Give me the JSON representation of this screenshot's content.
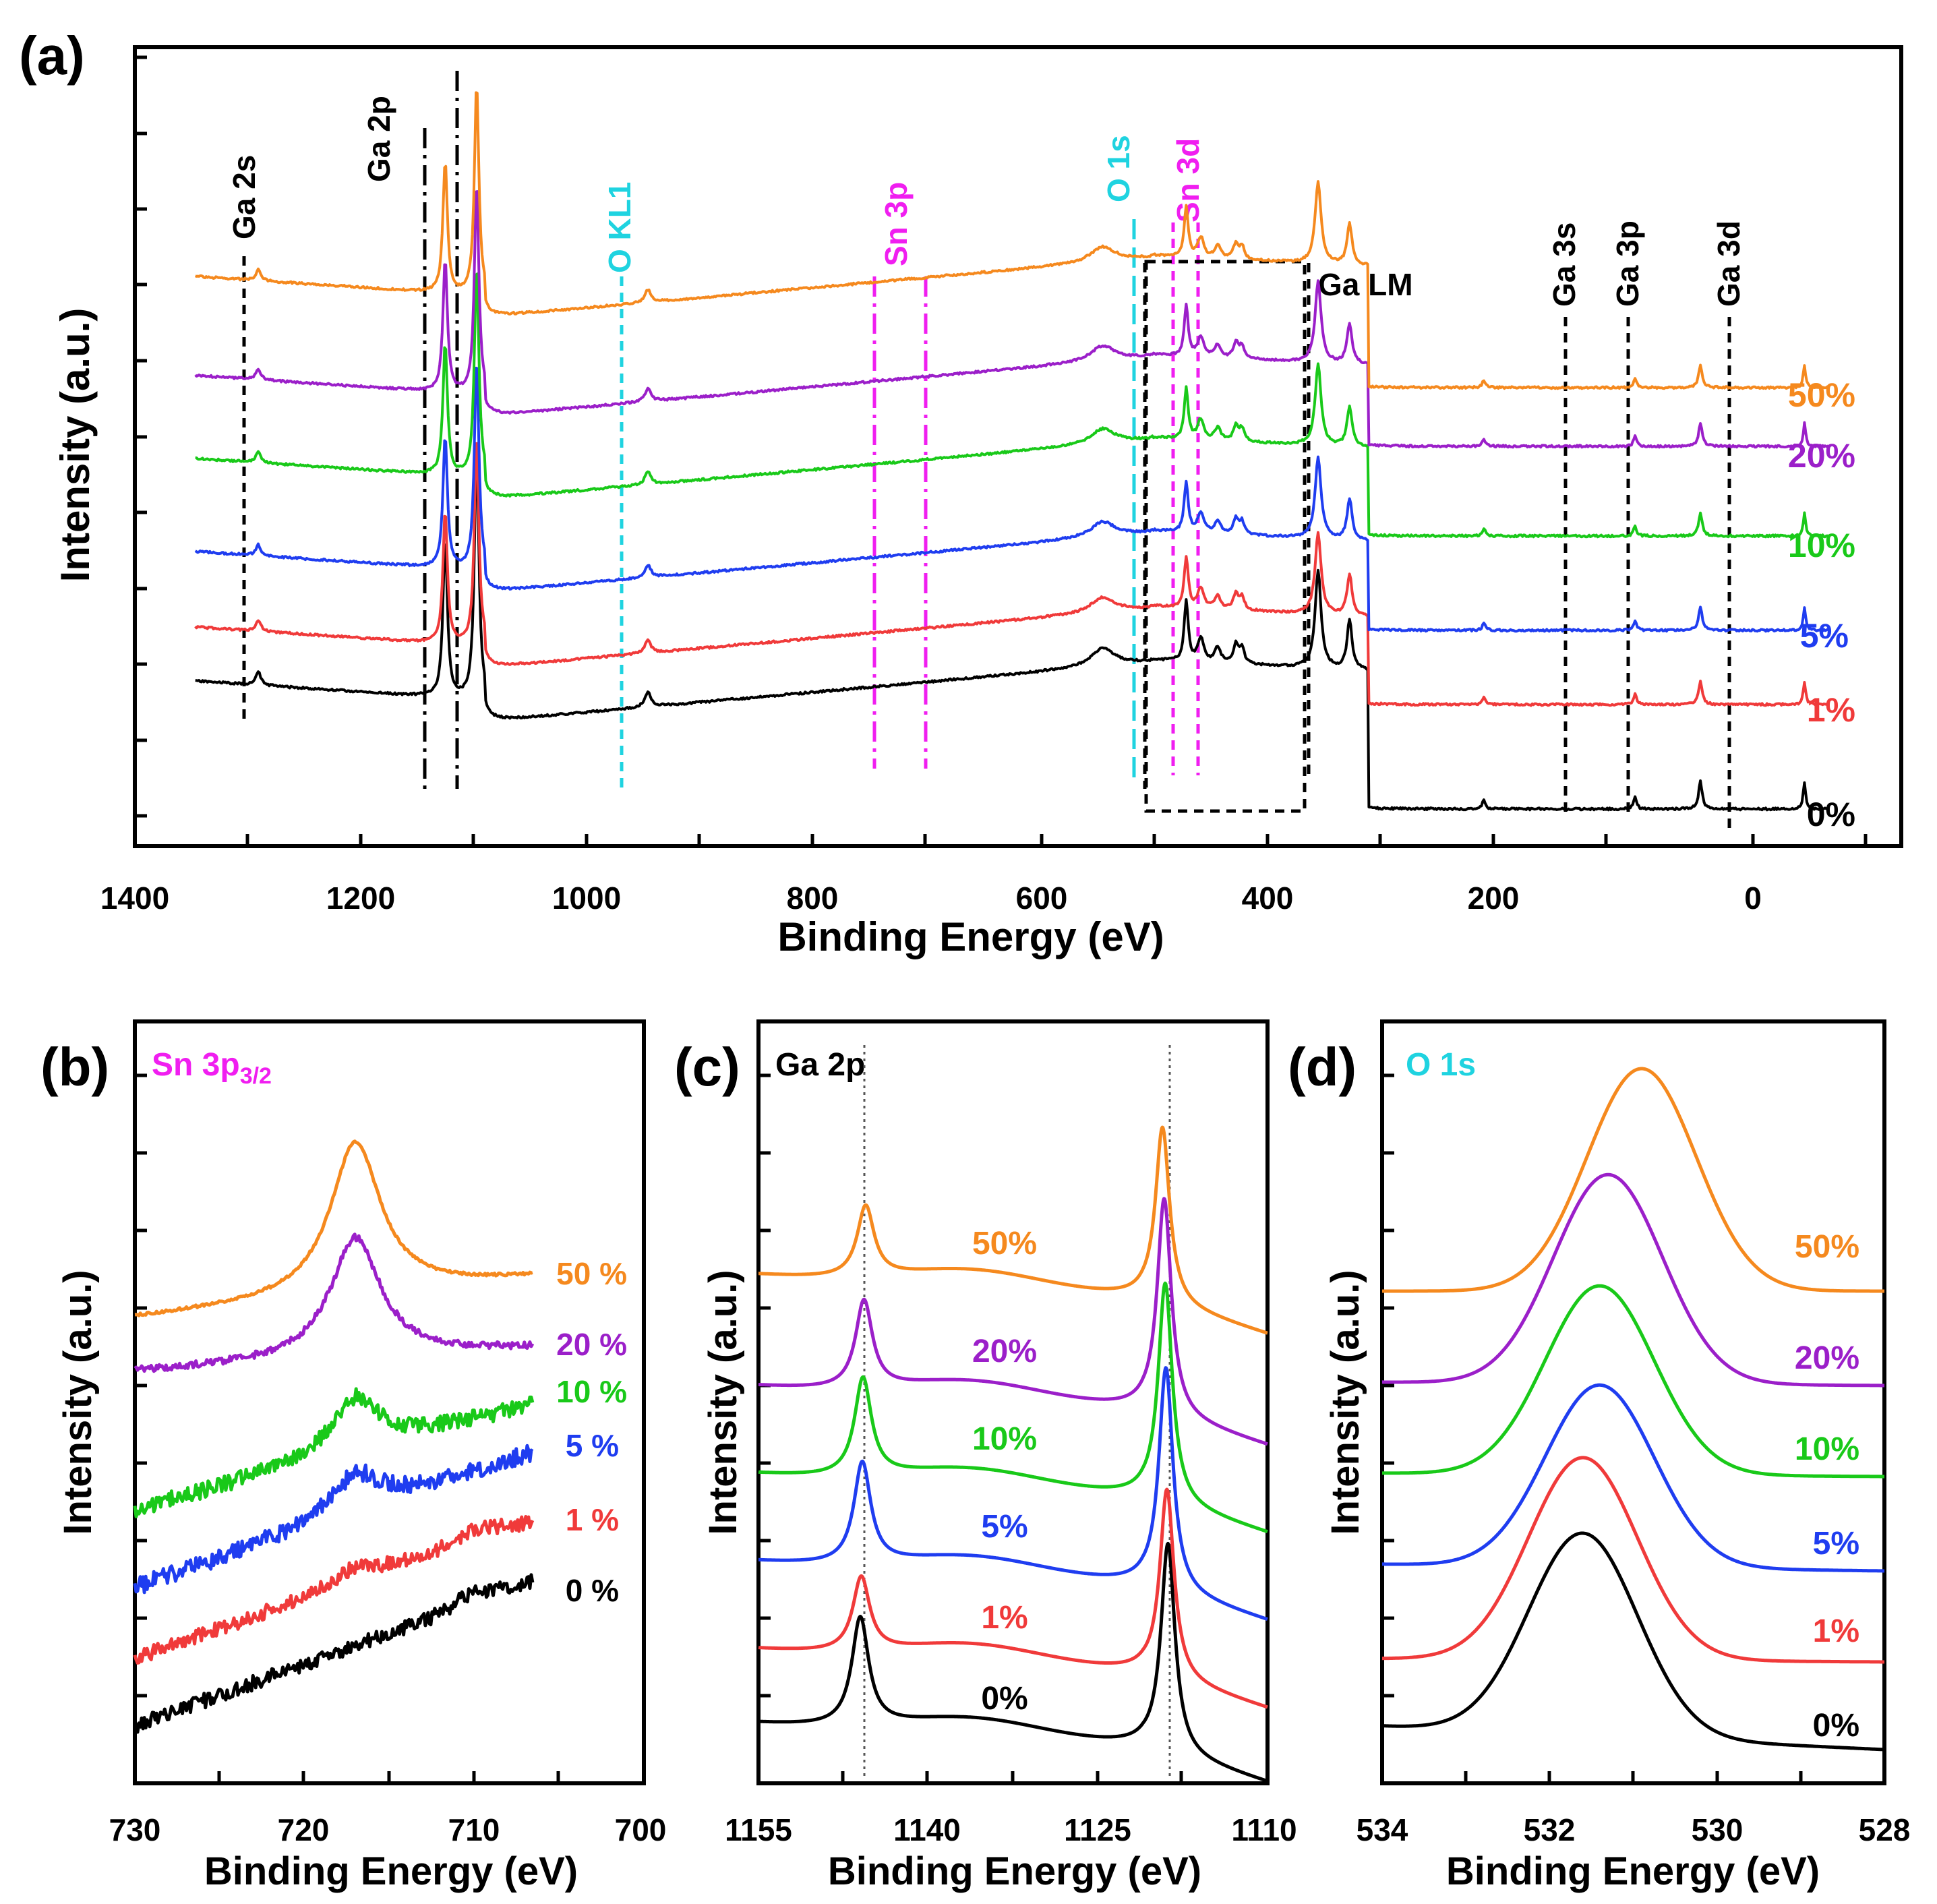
{
  "figure": {
    "panel_labels": [
      "(a)",
      "(b)",
      "(c)",
      "(d)"
    ],
    "colors": {
      "0%": "#000000",
      "1%": "#f03a3a",
      "5%": "#1f3df0",
      "10%": "#19c919",
      "20%": "#9b1fc9",
      "50%": "#f5891e",
      "cyan": "#1fd3e0",
      "magenta": "#f01ef0"
    }
  },
  "chart_data": [
    {
      "panel": "(a)",
      "type": "line",
      "title": "",
      "xlabel": "Binding Energy (eV)",
      "ylabel": "Intensity (a.u.)",
      "xlim": [
        1400,
        -60
      ],
      "x_ticks": [
        "1400",
        "1200",
        "1000",
        "800",
        "600",
        "400",
        "200",
        "0"
      ],
      "series_names": [
        "0%",
        "1%",
        "5%",
        "10%",
        "20%",
        "50%"
      ],
      "series_labels": [
        "0%",
        "1%",
        "5%",
        "10%",
        "20%",
        "50%"
      ],
      "peak_labels": [
        {
          "text": "Ga 2s",
          "energy": 1298,
          "color": "black"
        },
        {
          "text": "Ga 2p",
          "energy": 1130,
          "color": "black"
        },
        {
          "text": "O KL1",
          "energy": 976,
          "color": "cyan"
        },
        {
          "text": "Sn 3p",
          "energy": 738,
          "color": "magenta"
        },
        {
          "text": "O 1s",
          "energy": 531,
          "color": "cyan"
        },
        {
          "text": "Sn 3d",
          "energy": 490,
          "color": "magenta"
        },
        {
          "text": "Ga LM",
          "energy": 420,
          "color": "black"
        },
        {
          "text": "Ga 3s",
          "energy": 160,
          "color": "black"
        },
        {
          "text": "Ga 3p",
          "energy": 106,
          "color": "black"
        },
        {
          "text": "Ga 3d",
          "energy": 20,
          "color": "black"
        }
      ]
    },
    {
      "panel": "(b)",
      "type": "line",
      "title": "Sn 3p3/2",
      "xlabel": "Binding Energy (eV)",
      "ylabel": "Intensity (a.u.)",
      "xlim": [
        730,
        700
      ],
      "x_ticks": [
        "730",
        "720",
        "710",
        "700"
      ],
      "series_names": [
        "0%",
        "1%",
        "5%",
        "10%",
        "20%",
        "50%"
      ],
      "series_labels": [
        "0 %",
        "1 %",
        "5 %",
        "10 %",
        "20 %",
        "50 %"
      ],
      "peak_center_eV": 717
    },
    {
      "panel": "(c)",
      "type": "line",
      "title": "Ga 2p",
      "xlabel": "Binding Energy (eV)",
      "ylabel": "Intensity (a.u.)",
      "xlim": [
        1155,
        1110
      ],
      "x_ticks": [
        "1155",
        "1140",
        "1125",
        "1110"
      ],
      "series_names": [
        "0%",
        "1%",
        "5%",
        "10%",
        "20%",
        "50%"
      ],
      "series_labels": [
        "0%",
        "1%",
        "5%",
        "10%",
        "20%",
        "50%"
      ],
      "peaks_eV": [
        1145.5,
        1118.6
      ]
    },
    {
      "panel": "(d)",
      "type": "line",
      "title": "O 1s",
      "xlabel": "Binding Energy (eV)",
      "ylabel": "Intensity (a.u.)",
      "xlim": [
        534,
        528
      ],
      "x_ticks": [
        "534",
        "532",
        "530",
        "528"
      ],
      "series_names": [
        "0%",
        "1%",
        "5%",
        "10%",
        "20%",
        "50%"
      ],
      "series_labels": [
        "0%",
        "1%",
        "5%",
        "10%",
        "20%",
        "50%"
      ],
      "peak_centers_eV": [
        531.6,
        531.6,
        531.4,
        531.4,
        531.3,
        530.9
      ]
    }
  ]
}
